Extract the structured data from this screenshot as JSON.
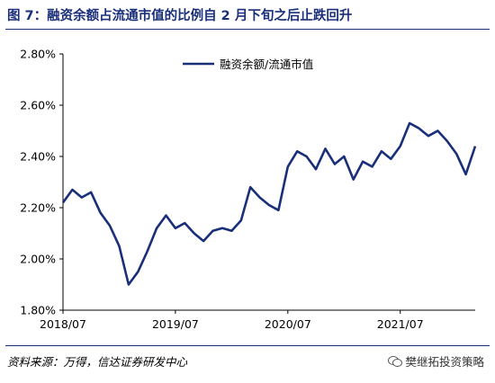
{
  "figure": {
    "title": "图 7：融资余额占流通市值的比例自 2 月下旬之后止跌回升",
    "source": "资料来源：万得，信达证券研发中心",
    "watermark": "樊继拓投资策略"
  },
  "chart_data": {
    "type": "line",
    "title": "",
    "xlabel": "",
    "ylabel": "",
    "ylim": [
      1.8,
      2.8
    ],
    "yticks": [
      "1.80%",
      "2.00%",
      "2.20%",
      "2.40%",
      "2.60%",
      "2.80%"
    ],
    "ytick_values": [
      1.8,
      2.0,
      2.2,
      2.4,
      2.6,
      2.8
    ],
    "xticks": [
      "2018/07",
      "2019/07",
      "2020/07",
      "2021/07"
    ],
    "xtick_values": [
      "2018-07",
      "2019-07",
      "2020-07",
      "2021-07"
    ],
    "xlim": [
      "2018-07",
      "2022-03"
    ],
    "grid": false,
    "legend": "top-center",
    "series": [
      {
        "name": "融资余额/流通市值",
        "color": "#1a2f7a",
        "x": [
          "2018-07",
          "2018-08",
          "2018-09",
          "2018-10",
          "2018-11",
          "2018-12",
          "2019-01",
          "2019-02",
          "2019-03",
          "2019-04",
          "2019-05",
          "2019-06",
          "2019-07",
          "2019-08",
          "2019-09",
          "2019-10",
          "2019-11",
          "2019-12",
          "2020-01",
          "2020-02",
          "2020-03",
          "2020-04",
          "2020-05",
          "2020-06",
          "2020-07",
          "2020-08",
          "2020-09",
          "2020-10",
          "2020-11",
          "2020-12",
          "2021-01",
          "2021-02",
          "2021-03",
          "2021-04",
          "2021-05",
          "2021-06",
          "2021-07",
          "2021-08",
          "2021-09",
          "2021-10",
          "2021-11",
          "2021-12",
          "2022-01",
          "2022-02",
          "2022-03"
        ],
        "y": [
          2.22,
          2.27,
          2.24,
          2.26,
          2.18,
          2.13,
          2.05,
          1.9,
          1.95,
          2.03,
          2.12,
          2.17,
          2.12,
          2.14,
          2.1,
          2.07,
          2.11,
          2.12,
          2.11,
          2.15,
          2.28,
          2.24,
          2.21,
          2.19,
          2.36,
          2.42,
          2.4,
          2.35,
          2.43,
          2.37,
          2.4,
          2.31,
          2.38,
          2.36,
          2.42,
          2.39,
          2.44,
          2.53,
          2.51,
          2.48,
          2.5,
          2.46,
          2.41,
          2.33,
          2.44
        ]
      }
    ]
  }
}
